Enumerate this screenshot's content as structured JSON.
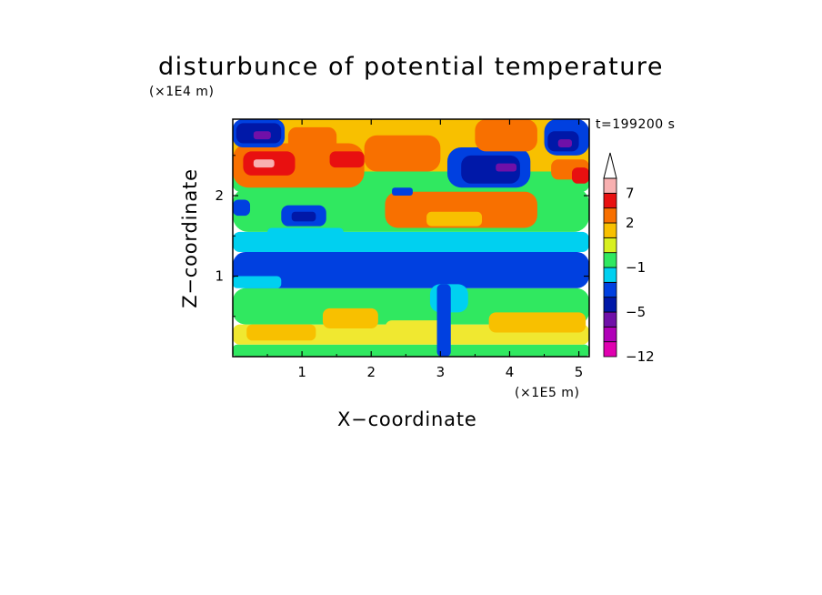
{
  "chart_data": {
    "type": "heatmap",
    "title": "disturbunce of potential temperature",
    "time_label": "t=199200 s",
    "xlabel": "X−coordinate",
    "ylabel": "Z−coordinate",
    "x_unit": "(×1E5 m)",
    "y_unit": "(×1E4 m)",
    "xlim": [
      0,
      5.15
    ],
    "ylim": [
      0,
      2.95
    ],
    "x_ticks": [
      1,
      2,
      3,
      4,
      5
    ],
    "x_tick_labels": [
      "1",
      "2",
      "3",
      "4",
      "5"
    ],
    "y_ticks": [
      1,
      2
    ],
    "y_tick_labels": [
      "1",
      "2"
    ],
    "colorbar": {
      "bins": [
        {
          "color": "#e000b0"
        },
        {
          "color": "#b000b8"
        },
        {
          "color": "#7010a8"
        },
        {
          "color": "#0018a8"
        },
        {
          "color": "#0040e0"
        },
        {
          "color": "#00d0f0"
        },
        {
          "color": "#30e860"
        },
        {
          "color": "#d8f020"
        },
        {
          "color": "#f8c000"
        },
        {
          "color": "#f87000"
        },
        {
          "color": "#e81010"
        },
        {
          "color": "#f8b0b0"
        }
      ],
      "labels": [
        "−12",
        "−5",
        "−1",
        "2",
        "7"
      ],
      "extend": "max"
    },
    "regions": [
      {
        "x": [
          0,
          5.15
        ],
        "y": [
          0,
          0.15
        ],
        "color": "#30e860"
      },
      {
        "x": [
          0,
          5.15
        ],
        "y": [
          0.15,
          0.4
        ],
        "color": "#f0e830"
      },
      {
        "x": [
          0,
          5.15
        ],
        "y": [
          0.4,
          0.85
        ],
        "color": "#30e860"
      },
      {
        "x": [
          0,
          5.15
        ],
        "y": [
          0.85,
          1.3
        ],
        "color": "#0040e0"
      },
      {
        "x": [
          0,
          5.15
        ],
        "y": [
          1.3,
          1.55
        ],
        "color": "#00d0f0"
      },
      {
        "x": [
          0,
          5.15
        ],
        "y": [
          1.55,
          2.1
        ],
        "color": "#30e860"
      },
      {
        "x": [
          0,
          5.15
        ],
        "y": [
          2.1,
          2.95
        ],
        "color": "#f8c000"
      },
      {
        "x": [
          0.2,
          1.2
        ],
        "y": [
          0.2,
          0.4
        ],
        "color": "#f8c000"
      },
      {
        "x": [
          1.3,
          2.1
        ],
        "y": [
          0.35,
          0.6
        ],
        "color": "#f8c000"
      },
      {
        "x": [
          3.7,
          5.1
        ],
        "y": [
          0.3,
          0.55
        ],
        "color": "#f8c000"
      },
      {
        "x": [
          2.2,
          3.1
        ],
        "y": [
          0.2,
          0.45
        ],
        "color": "#f0e830"
      },
      {
        "x": [
          0.0,
          0.7
        ],
        "y": [
          0.85,
          1.0
        ],
        "color": "#00d0f0"
      },
      {
        "x": [
          2.85,
          3.4
        ],
        "y": [
          0.55,
          0.9
        ],
        "color": "#00d0f0"
      },
      {
        "x": [
          0.5,
          1.6
        ],
        "y": [
          1.45,
          1.6
        ],
        "color": "#00d0f0"
      },
      {
        "x": [
          0.7,
          1.35
        ],
        "y": [
          1.62,
          1.88
        ],
        "color": "#0040e0"
      },
      {
        "x": [
          0.85,
          1.2
        ],
        "y": [
          1.68,
          1.8
        ],
        "color": "#0018a8"
      },
      {
        "x": [
          2.2,
          4.4
        ],
        "y": [
          1.6,
          2.05
        ],
        "color": "#f87000"
      },
      {
        "x": [
          2.8,
          3.6
        ],
        "y": [
          1.62,
          1.8
        ],
        "color": "#f8c000"
      },
      {
        "x": [
          0.0,
          5.15
        ],
        "y": [
          2.05,
          2.3
        ],
        "color": "#30e860"
      },
      {
        "x": [
          0.0,
          1.9
        ],
        "y": [
          2.1,
          2.65
        ],
        "color": "#f87000"
      },
      {
        "x": [
          0.15,
          0.9
        ],
        "y": [
          2.25,
          2.55
        ],
        "color": "#e81010"
      },
      {
        "x": [
          0.3,
          0.6
        ],
        "y": [
          2.35,
          2.45
        ],
        "color": "#f8b0b0"
      },
      {
        "x": [
          1.9,
          3.0
        ],
        "y": [
          2.3,
          2.75
        ],
        "color": "#f87000"
      },
      {
        "x": [
          3.1,
          4.3
        ],
        "y": [
          2.1,
          2.6
        ],
        "color": "#0040e0"
      },
      {
        "x": [
          3.3,
          4.15
        ],
        "y": [
          2.15,
          2.5
        ],
        "color": "#0018a8"
      },
      {
        "x": [
          3.8,
          4.1
        ],
        "y": [
          2.3,
          2.4
        ],
        "color": "#7010a8"
      },
      {
        "x": [
          2.3,
          2.6
        ],
        "y": [
          2.0,
          2.1
        ],
        "color": "#0040e0"
      },
      {
        "x": [
          0.0,
          0.75
        ],
        "y": [
          2.6,
          2.95
        ],
        "color": "#0040e0"
      },
      {
        "x": [
          0.05,
          0.7
        ],
        "y": [
          2.65,
          2.9
        ],
        "color": "#0018a8"
      },
      {
        "x": [
          0.3,
          0.55
        ],
        "y": [
          2.7,
          2.8
        ],
        "color": "#7010a8"
      },
      {
        "x": [
          0.8,
          1.5
        ],
        "y": [
          2.55,
          2.85
        ],
        "color": "#f87000"
      },
      {
        "x": [
          3.5,
          4.4
        ],
        "y": [
          2.55,
          2.95
        ],
        "color": "#f87000"
      },
      {
        "x": [
          4.5,
          5.15
        ],
        "y": [
          2.5,
          2.95
        ],
        "color": "#0040e0"
      },
      {
        "x": [
          4.55,
          5.0
        ],
        "y": [
          2.55,
          2.8
        ],
        "color": "#0018a8"
      },
      {
        "x": [
          4.7,
          4.9
        ],
        "y": [
          2.6,
          2.7
        ],
        "color": "#7010a8"
      },
      {
        "x": [
          4.6,
          5.15
        ],
        "y": [
          2.2,
          2.45
        ],
        "color": "#f87000"
      },
      {
        "x": [
          4.9,
          5.15
        ],
        "y": [
          2.15,
          2.35
        ],
        "color": "#e81010"
      },
      {
        "x": [
          1.4,
          1.9
        ],
        "y": [
          2.35,
          2.55
        ],
        "color": "#e81010"
      },
      {
        "x": [
          0.0,
          0.25
        ],
        "y": [
          1.75,
          1.95
        ],
        "color": "#0040e0"
      },
      {
        "x": [
          2.95,
          3.15
        ],
        "y": [
          0.0,
          0.9
        ],
        "color": "#0040e0"
      }
    ]
  }
}
